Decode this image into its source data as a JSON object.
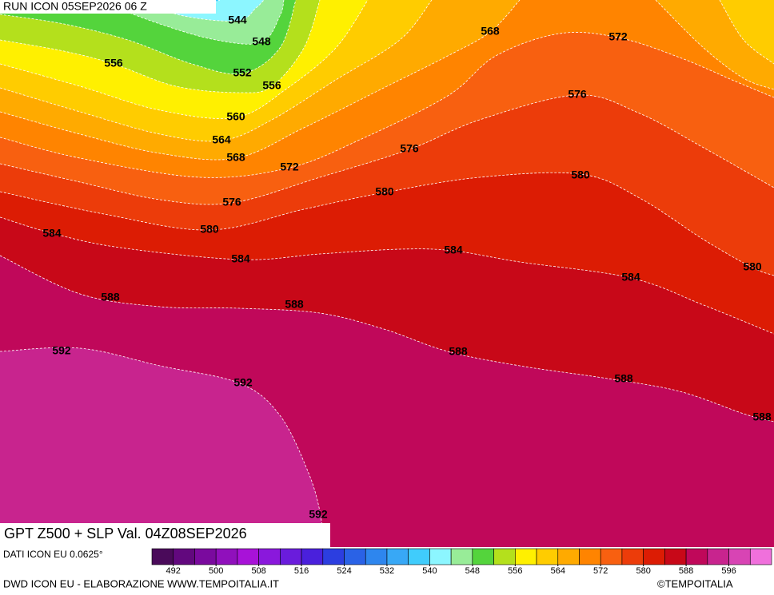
{
  "header": {
    "run": "RUN ICON 05SEP2026 06 Z",
    "title": "GPT Z500 + SLP Val. 04Z08SEP2026"
  },
  "contour_labels": [
    544,
    548,
    552,
    556,
    556,
    560,
    564,
    568,
    568,
    572,
    572,
    576,
    576,
    576,
    580,
    580,
    580,
    580,
    584,
    584,
    584,
    584,
    588,
    588,
    588,
    588,
    588,
    592,
    592,
    592
  ],
  "colorbar": {
    "source": "DATI ICON EU 0.0625°",
    "bounds": [
      488,
      604
    ],
    "colors": [
      "#4a0a5a",
      "#62087e",
      "#7a0a9e",
      "#9010bc",
      "#a812d8",
      "#8a18dc",
      "#6a1cdc",
      "#4a20dc",
      "#2c3ee0",
      "#2a62e6",
      "#2e86ee",
      "#38a8f6",
      "#40ccfc",
      "#8cf6ff",
      "#98ec98",
      "#54d43c",
      "#b4e01c",
      "#fff000",
      "#ffcc00",
      "#ffaa00",
      "#ff8400",
      "#f86010",
      "#ec3c0a",
      "#dc1c04",
      "#c80818",
      "#c0085a",
      "#c8248e",
      "#d844b4",
      "#f070dc"
    ],
    "ticks": [
      492,
      500,
      508,
      516,
      524,
      532,
      540,
      548,
      556,
      564,
      572,
      580,
      588,
      596
    ]
  },
  "footer": {
    "credit": "DWD ICON EU - ELABORAZIONE WWW.TEMPOITALIA.IT",
    "copyright": "©TEMPOITALIA"
  }
}
